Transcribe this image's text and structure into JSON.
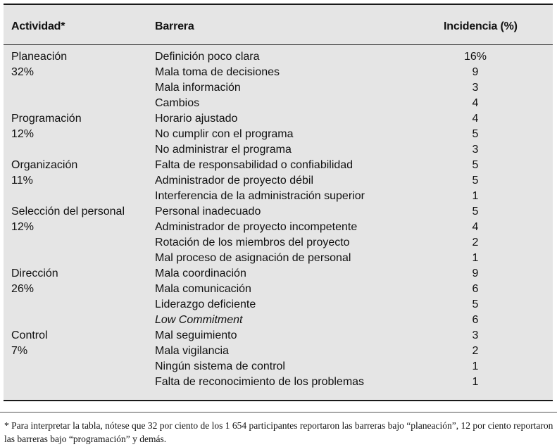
{
  "table": {
    "headers": {
      "activity": "Actividad*",
      "barrier": "Barrera",
      "incidence": "Incidencia (%)"
    },
    "groups": [
      {
        "activity": "Planeación",
        "percent": "32%",
        "rows": [
          {
            "barrier": "Definición poco clara",
            "incidence": "16%"
          },
          {
            "barrier": "Mala toma de decisiones",
            "incidence": "9"
          },
          {
            "barrier": "Mala información",
            "incidence": "3"
          },
          {
            "barrier": "Cambios",
            "incidence": "4"
          }
        ]
      },
      {
        "activity": "Programación",
        "percent": "12%",
        "rows": [
          {
            "barrier": "Horario ajustado",
            "incidence": "4"
          },
          {
            "barrier": "No cumplir con el programa",
            "incidence": "5"
          },
          {
            "barrier": "No administrar el programa",
            "incidence": "3"
          }
        ]
      },
      {
        "activity": "Organización",
        "percent": "11%",
        "rows": [
          {
            "barrier": "Falta de responsabilidad o confiabilidad",
            "incidence": "5"
          },
          {
            "barrier": "Administrador de proyecto débil",
            "incidence": "5"
          },
          {
            "barrier": "Interferencia de la administración superior",
            "incidence": "1"
          }
        ]
      },
      {
        "activity": "Selección del personal",
        "percent": "12%",
        "rows": [
          {
            "barrier": "Personal inadecuado",
            "incidence": "5"
          },
          {
            "barrier": "Administrador de proyecto incompetente",
            "incidence": "4"
          },
          {
            "barrier": "Rotación de los miembros del proyecto",
            "incidence": "2"
          },
          {
            "barrier": "Mal proceso de asignación de personal",
            "incidence": "1"
          }
        ]
      },
      {
        "activity": "Dirección",
        "percent": "26%",
        "rows": [
          {
            "barrier": "Mala coordinación",
            "incidence": "9"
          },
          {
            "barrier": "Mala comunicación",
            "incidence": "6"
          },
          {
            "barrier": "Liderazgo deficiente",
            "incidence": "5"
          },
          {
            "barrier": "Low Commitment",
            "incidence": "6",
            "italic": true
          }
        ]
      },
      {
        "activity": "Control",
        "percent": "7%",
        "rows": [
          {
            "barrier": "Mal seguimiento",
            "incidence": "3"
          },
          {
            "barrier": "Mala vigilancia",
            "incidence": "2"
          },
          {
            "barrier": "Ningún sistema de control",
            "incidence": "1"
          },
          {
            "barrier": "Falta de reconocimiento de los problemas",
            "incidence": "1"
          }
        ]
      }
    ]
  },
  "footnote": "* Para interpretar la tabla, nótese que 32 por ciento de los 1 654 participantes reportaron las barreras bajo “planeación”, 12 por ciento reportaron las barreras bajo “programación” y demás."
}
